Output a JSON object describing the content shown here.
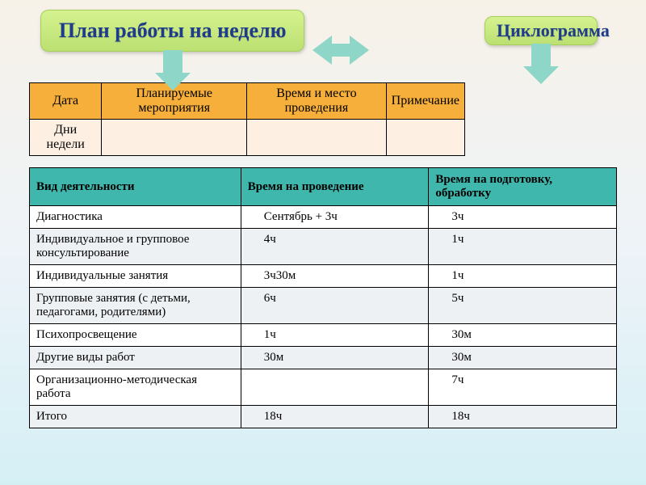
{
  "header": {
    "main_title": "План работы на неделю",
    "side_title": "Циклограмма",
    "arrow_colors": {
      "horizontal": "#8dd6c8",
      "down_main": "#8dd6c8",
      "down_side": "#8dd6c8"
    },
    "card_bg_top": "#d5f28f",
    "card_bg_bottom": "#bce072",
    "title_color": "#1f3c8c"
  },
  "table1": {
    "header_bg": "#f6af3a",
    "row_bg": "#fdefe1",
    "columns": [
      "Дата",
      "Планируемые мероприятия",
      "Время и  место  проведения",
      "Примечание"
    ],
    "rows": [
      [
        "Дни недели",
        "",
        "",
        ""
      ]
    ]
  },
  "table2": {
    "header_bg": "#3fb7ad",
    "row_alt_bg": "#eef1f4",
    "columns": [
      "Вид деятельности",
      "Время на проведение",
      "Время на подготовку, обработку"
    ],
    "rows": [
      [
        "Диагностика",
        "Сентябрь + 3ч",
        "3ч"
      ],
      [
        "Индивидуальное и групповое консультирование",
        "4ч",
        "1ч"
      ],
      [
        "Индивидуальные занятия",
        "3ч30м",
        "1ч"
      ],
      [
        "Групповые занятия (с детьми, педагогами, родителями)",
        "6ч",
        "5ч"
      ],
      [
        "Психопросвещение",
        "1ч",
        "30м"
      ],
      [
        "Другие виды работ",
        "30м",
        "30м"
      ],
      [
        "Организационно-методическая работа",
        "",
        "7ч"
      ],
      [
        "Итого",
        "18ч",
        "18ч"
      ]
    ]
  }
}
